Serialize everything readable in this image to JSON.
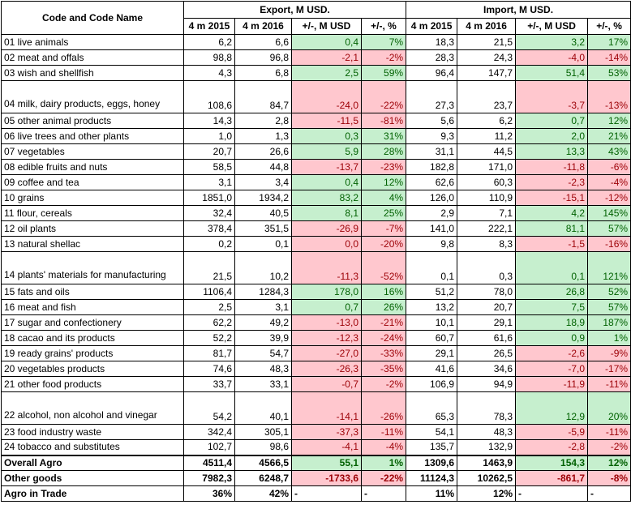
{
  "header": {
    "code_name": "Code and Code Name",
    "export": "Export, M USD.",
    "import": "Import, M USD.",
    "sub": [
      "4 m 2015",
      "4 m 2016",
      "+/-, M USD",
      "+/-, %",
      "4 m 2015",
      "4 m 2016",
      "+/-, M USD",
      "+/-, %"
    ]
  },
  "rows": [
    {
      "name": "01 live animals",
      "e15": "6,2",
      "e16": "6,6",
      "ed": "0,4",
      "ep": "7%",
      "i15": "18,3",
      "i16": "21,5",
      "id": "3,2",
      "ip": "17%",
      "es": "pos",
      "is": "pos"
    },
    {
      "name": "02 meat and offals",
      "e15": "98,8",
      "e16": "96,8",
      "ed": "-2,1",
      "ep": "-2%",
      "i15": "28,3",
      "i16": "24,3",
      "id": "-4,0",
      "ip": "-14%",
      "es": "neg",
      "is": "neg"
    },
    {
      "name": "03 wish and shellfish",
      "e15": "4,3",
      "e16": "6,8",
      "ed": "2,5",
      "ep": "59%",
      "i15": "96,4",
      "i16": "147,7",
      "id": "51,4",
      "ip": "53%",
      "es": "pos",
      "is": "pos"
    },
    {
      "name": "04 milk, dairy products, eggs, honey",
      "e15": "108,6",
      "e16": "84,7",
      "ed": "-24,0",
      "ep": "-22%",
      "i15": "27,3",
      "i16": "23,7",
      "id": "-3,7",
      "ip": "-13%",
      "es": "neg",
      "is": "neg",
      "tall": true
    },
    {
      "name": "05 other animal products",
      "e15": "14,3",
      "e16": "2,8",
      "ed": "-11,5",
      "ep": "-81%",
      "i15": "5,6",
      "i16": "6,2",
      "id": "0,7",
      "ip": "12%",
      "es": "neg",
      "is": "pos"
    },
    {
      "name": "06 live trees and other plants",
      "e15": "1,0",
      "e16": "1,3",
      "ed": "0,3",
      "ep": "31%",
      "i15": "9,3",
      "i16": "11,2",
      "id": "2,0",
      "ip": "21%",
      "es": "pos",
      "is": "pos"
    },
    {
      "name": "07 vegetables",
      "e15": "20,7",
      "e16": "26,6",
      "ed": "5,9",
      "ep": "28%",
      "i15": "31,1",
      "i16": "44,5",
      "id": "13,3",
      "ip": "43%",
      "es": "pos",
      "is": "pos"
    },
    {
      "name": "08 edible fruits and nuts",
      "e15": "58,5",
      "e16": "44,8",
      "ed": "-13,7",
      "ep": "-23%",
      "i15": "182,8",
      "i16": "171,0",
      "id": "-11,8",
      "ip": "-6%",
      "es": "neg",
      "is": "neg"
    },
    {
      "name": "09 coffee and tea",
      "e15": "3,1",
      "e16": "3,4",
      "ed": "0,4",
      "ep": "12%",
      "i15": "62,6",
      "i16": "60,3",
      "id": "-2,3",
      "ip": "-4%",
      "es": "pos",
      "is": "neg"
    },
    {
      "name": "10 grains",
      "e15": "1851,0",
      "e16": "1934,2",
      "ed": "83,2",
      "ep": "4%",
      "i15": "126,0",
      "i16": "110,9",
      "id": "-15,1",
      "ip": "-12%",
      "es": "pos",
      "is": "neg"
    },
    {
      "name": "11 flour, cereals",
      "e15": "32,4",
      "e16": "40,5",
      "ed": "8,1",
      "ep": "25%",
      "i15": "2,9",
      "i16": "7,1",
      "id": "4,2",
      "ip": "145%",
      "es": "pos",
      "is": "pos"
    },
    {
      "name": "12 oil plants",
      "e15": "378,4",
      "e16": "351,5",
      "ed": "-26,9",
      "ep": "-7%",
      "i15": "141,0",
      "i16": "222,1",
      "id": "81,1",
      "ip": "57%",
      "es": "neg",
      "is": "pos"
    },
    {
      "name": "13 natural shellac",
      "e15": "0,2",
      "e16": "0,1",
      "ed": "0,0",
      "ep": "-20%",
      "i15": "9,8",
      "i16": "8,3",
      "id": "-1,5",
      "ip": "-16%",
      "es": "neg",
      "is": "neg"
    },
    {
      "name": "14 plants' materials for manufacturing",
      "e15": "21,5",
      "e16": "10,2",
      "ed": "-11,3",
      "ep": "-52%",
      "i15": "0,1",
      "i16": "0,3",
      "id": "0,1",
      "ip": "121%",
      "es": "neg",
      "is": "pos",
      "tall": true
    },
    {
      "name": "15 fats and oils",
      "e15": "1106,4",
      "e16": "1284,3",
      "ed": "178,0",
      "ep": "16%",
      "i15": "51,2",
      "i16": "78,0",
      "id": "26,8",
      "ip": "52%",
      "es": "pos",
      "is": "pos"
    },
    {
      "name": "16 meat and fish",
      "e15": "2,5",
      "e16": "3,1",
      "ed": "0,7",
      "ep": "26%",
      "i15": "13,2",
      "i16": "20,7",
      "id": "7,5",
      "ip": "57%",
      "es": "pos",
      "is": "pos"
    },
    {
      "name": "17 sugar and confectionery",
      "e15": "62,2",
      "e16": "49,2",
      "ed": "-13,0",
      "ep": "-21%",
      "i15": "10,1",
      "i16": "29,1",
      "id": "18,9",
      "ip": "187%",
      "es": "neg",
      "is": "pos"
    },
    {
      "name": "18 cacao and its products",
      "e15": "52,2",
      "e16": "39,9",
      "ed": "-12,3",
      "ep": "-24%",
      "i15": "60,7",
      "i16": "61,6",
      "id": "0,9",
      "ip": "1%",
      "es": "neg",
      "is": "pos"
    },
    {
      "name": "19 ready grains' products",
      "e15": "81,7",
      "e16": "54,7",
      "ed": "-27,0",
      "ep": "-33%",
      "i15": "29,1",
      "i16": "26,5",
      "id": "-2,6",
      "ip": "-9%",
      "es": "neg",
      "is": "neg"
    },
    {
      "name": "20 vegetables products",
      "e15": "74,6",
      "e16": "48,3",
      "ed": "-26,3",
      "ep": "-35%",
      "i15": "41,6",
      "i16": "34,6",
      "id": "-7,0",
      "ip": "-17%",
      "es": "neg",
      "is": "neg"
    },
    {
      "name": "21 other food products",
      "e15": "33,7",
      "e16": "33,1",
      "ed": "-0,7",
      "ep": "-2%",
      "i15": "106,9",
      "i16": "94,9",
      "id": "-11,9",
      "ip": "-11%",
      "es": "neg",
      "is": "neg"
    },
    {
      "name": "22 alcohol, non alcohol and vinegar",
      "e15": "54,2",
      "e16": "40,1",
      "ed": "-14,1",
      "ep": "-26%",
      "i15": "65,3",
      "i16": "78,3",
      "id": "12,9",
      "ip": "20%",
      "es": "neg",
      "is": "pos",
      "tall": true
    },
    {
      "name": "23 food industry waste",
      "e15": "342,4",
      "e16": "305,1",
      "ed": "-37,3",
      "ep": "-11%",
      "i15": "54,1",
      "i16": "48,3",
      "id": "-5,9",
      "ip": "-11%",
      "es": "neg",
      "is": "neg"
    },
    {
      "name": "24 tobacco and substitutes",
      "e15": "102,7",
      "e16": "98,6",
      "ed": "-4,1",
      "ep": "-4%",
      "i15": "135,7",
      "i16": "132,9",
      "id": "-2,8",
      "ip": "-2%",
      "es": "neg",
      "is": "neg"
    }
  ],
  "totals": [
    {
      "name": "Overall Agro",
      "e15": "4511,4",
      "e16": "4566,5",
      "ed": "55,1",
      "ep": "1%",
      "i15": "1309,6",
      "i16": "1463,9",
      "id": "154,3",
      "ip": "12%",
      "es": "pos",
      "is": "pos"
    },
    {
      "name": "Other goods",
      "e15": "7982,3",
      "e16": "6248,7",
      "ed": "-1733,6",
      "ep": "-22%",
      "i15": "11124,3",
      "i16": "10262,5",
      "id": "-861,7",
      "ip": "-8%",
      "es": "neg",
      "is": "neg"
    },
    {
      "name": "Agro in Trade",
      "e15": "36%",
      "e16": "42%",
      "ed": "-",
      "ep": "-",
      "i15": "11%",
      "i16": "12%",
      "id": "-",
      "ip": "-",
      "es": "none",
      "is": "none",
      "dash": true
    }
  ]
}
